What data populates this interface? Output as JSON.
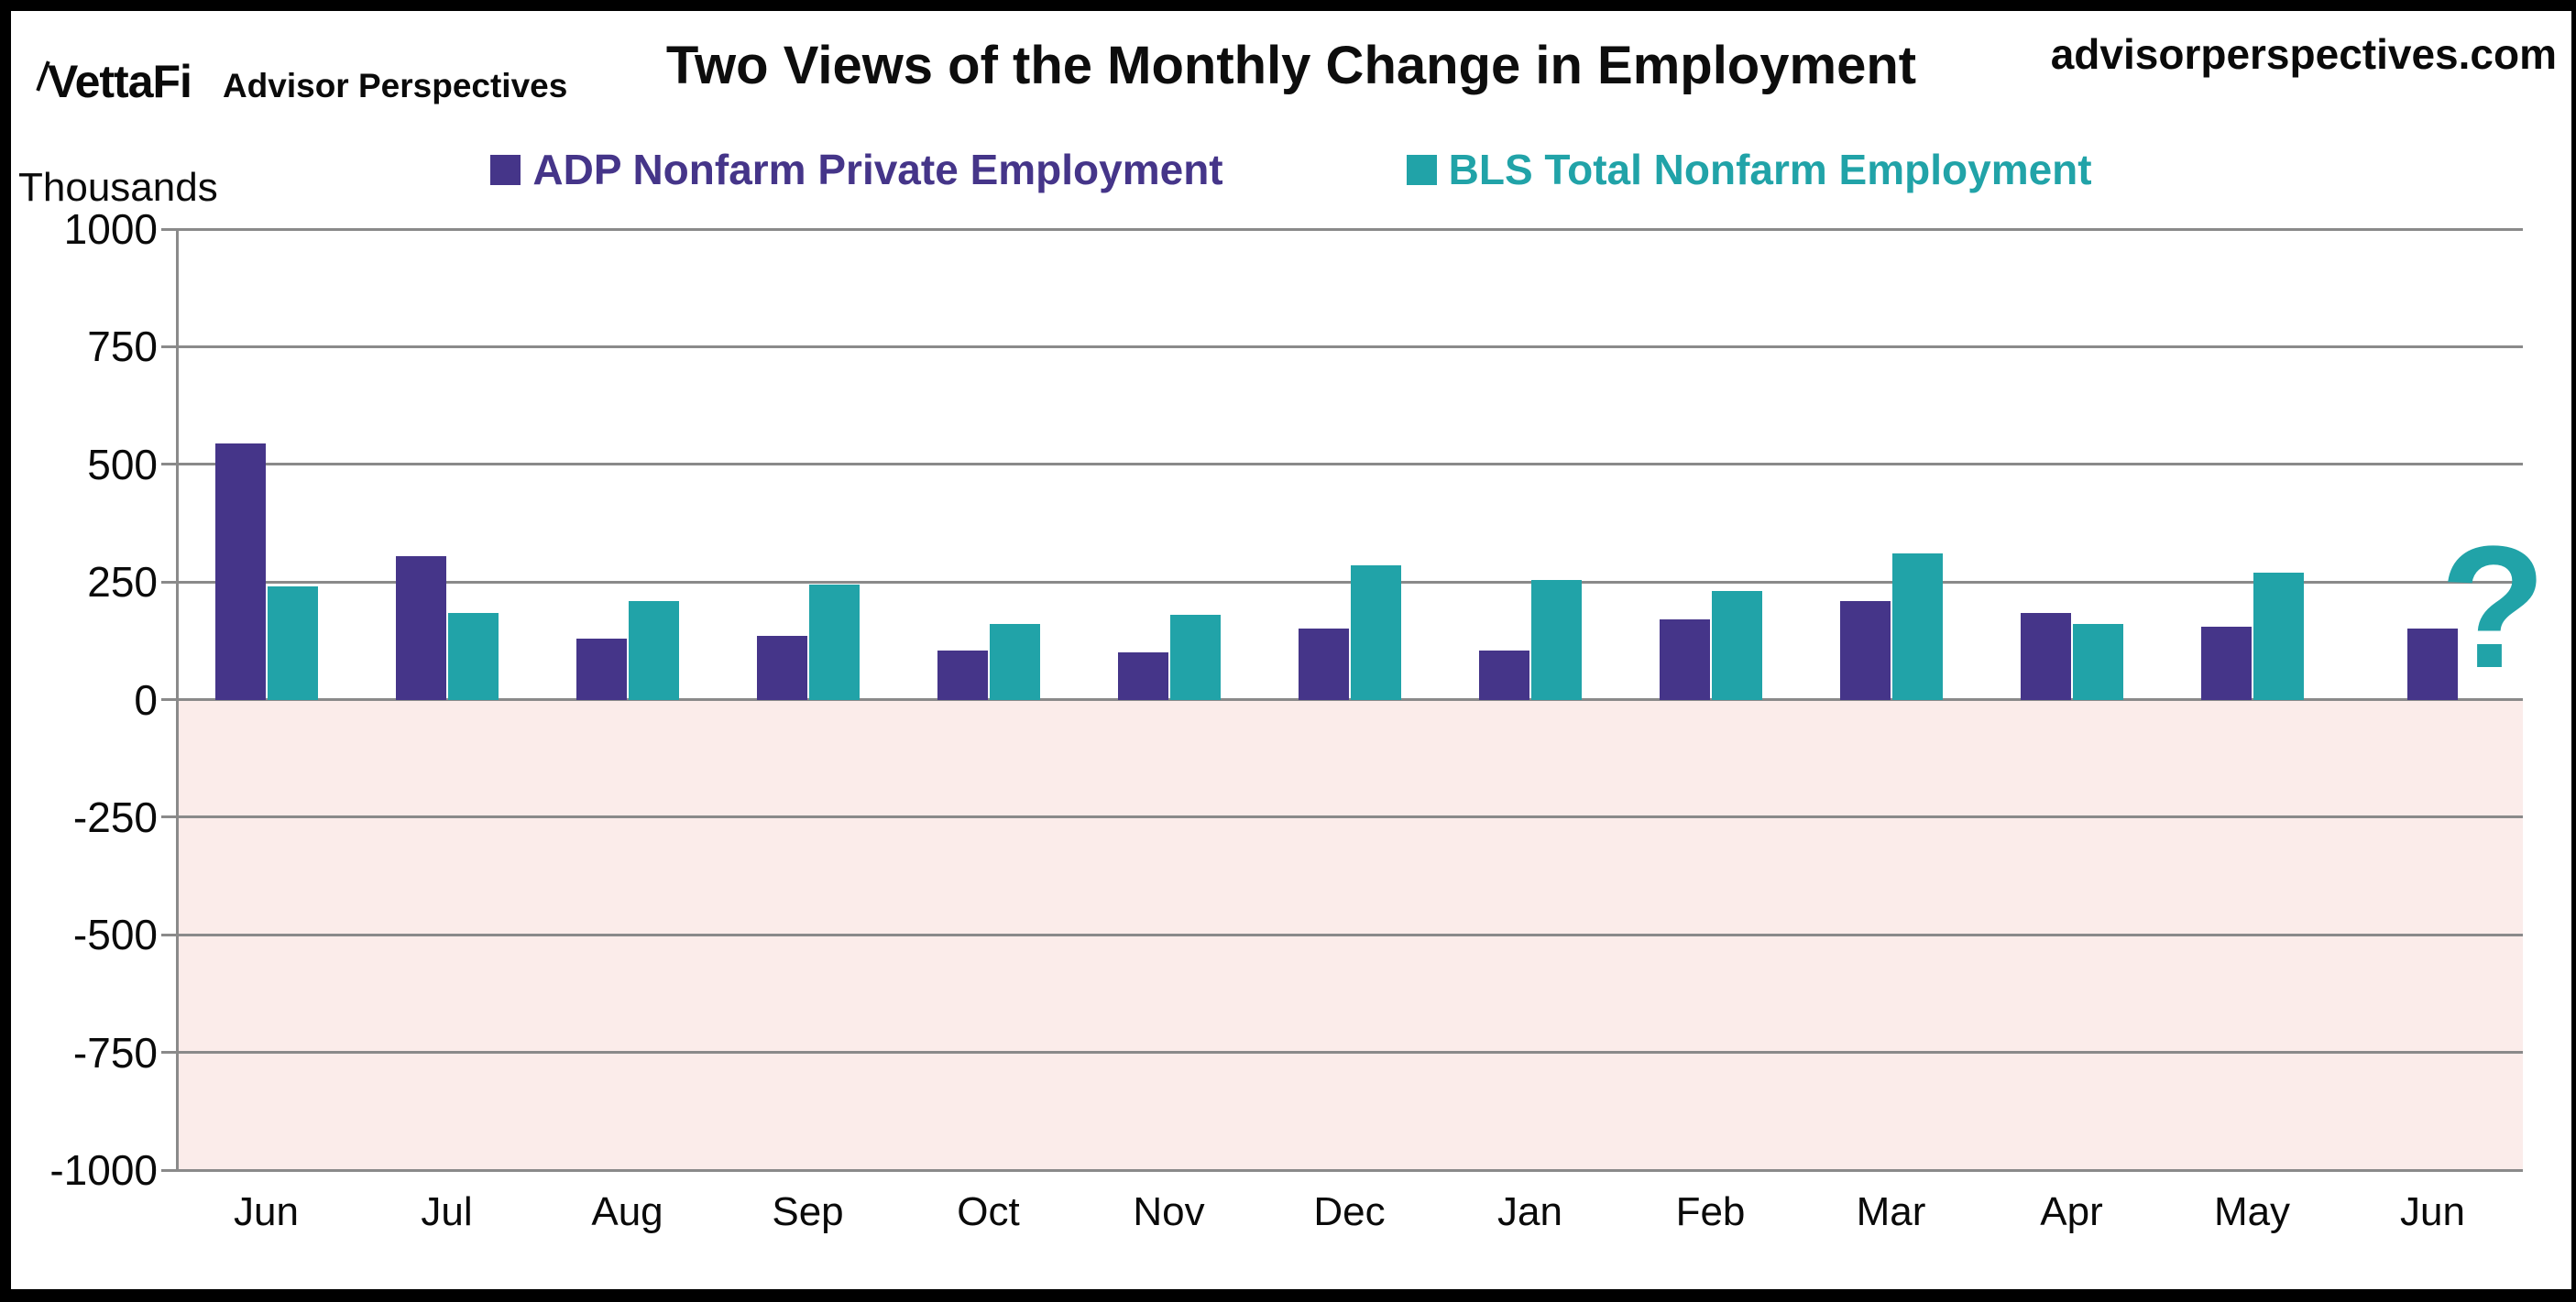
{
  "brand": {
    "logo_text": "VettaFi",
    "logo_subtext": "Advisor Perspectives",
    "website": "advisorperspectives.com"
  },
  "header": {
    "title": "Two Views of the Monthly Change in Employment"
  },
  "axis_unit_label": "Thousands",
  "colors": {
    "adp_purple": "#453589",
    "bls_teal": "#21A3A8",
    "negative_region_pink": "#FBECEA",
    "gridline_gray": "#8A8A8A",
    "text_black": "#0A0A0A"
  },
  "chart_data": {
    "type": "bar",
    "title": "Two Views of the Monthly Change in Employment",
    "ylabel": "Thousands",
    "xlabel": "",
    "ylim": [
      -1000,
      1000
    ],
    "y_ticks": [
      1000,
      750,
      500,
      250,
      0,
      -250,
      -500,
      -750,
      -1000
    ],
    "grid": "horizontal",
    "legend_position": "top-center",
    "negative_region_shaded": true,
    "categories": [
      "Jun",
      "Jul",
      "Aug",
      "Sep",
      "Oct",
      "Nov",
      "Dec",
      "Jan",
      "Feb",
      "Mar",
      "Apr",
      "May",
      "Jun"
    ],
    "series": [
      {
        "name": "ADP Nonfarm Private Employment",
        "color": "#453589",
        "values": [
          545,
          305,
          130,
          135,
          105,
          100,
          150,
          105,
          170,
          210,
          185,
          155,
          150
        ]
      },
      {
        "name": "BLS Total Nonfarm Employment",
        "color": "#21A3A8",
        "values": [
          240,
          185,
          210,
          245,
          160,
          180,
          285,
          255,
          230,
          310,
          160,
          270,
          null
        ]
      }
    ],
    "annotations": [
      {
        "text": "?",
        "color": "#21A3A8",
        "category_index": 12,
        "series": "BLS Total Nonfarm Employment"
      }
    ]
  }
}
